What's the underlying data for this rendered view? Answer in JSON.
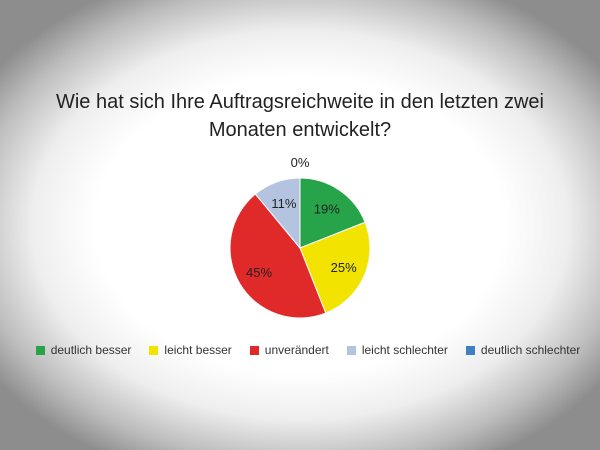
{
  "chart_data": {
    "type": "pie",
    "title_lines": [
      "Wie hat sich Ihre Auftragsreichweite in den letzten zwei",
      "Monaten entwickelt?"
    ],
    "categories": [
      "deutlich besser",
      "leicht besser",
      "unverändert",
      "leicht schlechter",
      "deutlich schlechter"
    ],
    "values": [
      19,
      25,
      45,
      11,
      0
    ],
    "labels": [
      "19%",
      "25%",
      "45%",
      "11%",
      "0%"
    ],
    "colors": [
      "#27a34a",
      "#f2e400",
      "#e02a2a",
      "#b4c4e0",
      "#3f7fc4"
    ],
    "legend_position": "bottom"
  }
}
